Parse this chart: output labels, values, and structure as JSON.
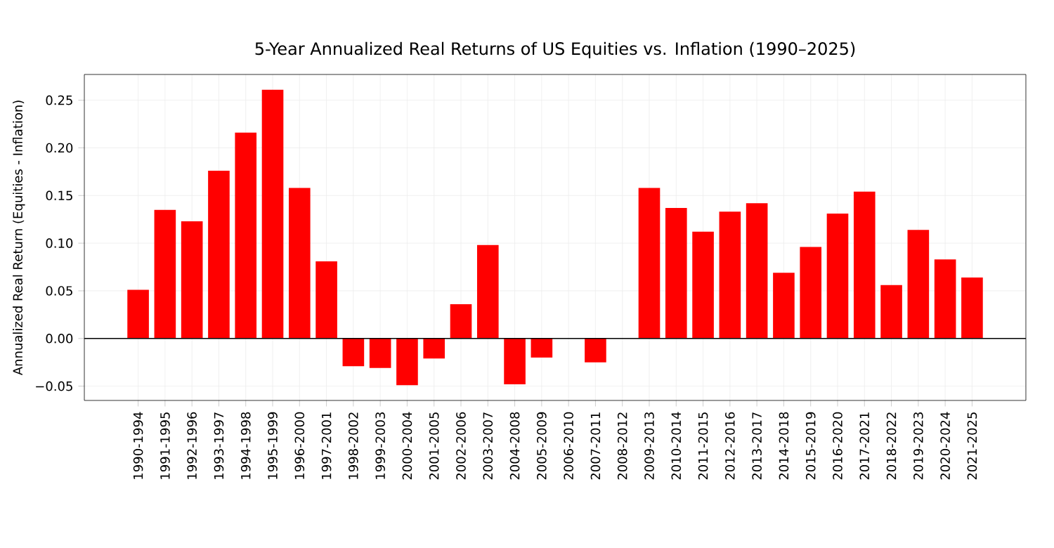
{
  "chart_data": {
    "type": "bar",
    "title": "5-Year Annualized Real Returns of US Equities vs. Inflation (1990–2025)",
    "ylabel": "Annualized Real Return (Equities - Inflation)",
    "categories": [
      "1990-1994",
      "1991-1995",
      "1992-1996",
      "1993-1997",
      "1994-1998",
      "1995-1999",
      "1996-2000",
      "1997-2001",
      "1998-2002",
      "1999-2003",
      "2000-2004",
      "2001-2005",
      "2002-2006",
      "2003-2007",
      "2004-2008",
      "2005-2009",
      "2006-2010",
      "2007-2011",
      "2008-2012",
      "2009-2013",
      "2010-2014",
      "2011-2015",
      "2012-2016",
      "2013-2017",
      "2014-2018",
      "2015-2019",
      "2016-2020",
      "2017-2021",
      "2018-2022",
      "2019-2023",
      "2020-2024",
      "2021-2025"
    ],
    "values": [
      0.051,
      0.135,
      0.123,
      0.176,
      0.216,
      0.261,
      0.158,
      0.081,
      -0.029,
      -0.031,
      -0.049,
      -0.021,
      0.036,
      0.098,
      -0.048,
      -0.02,
      0,
      -0.025,
      0,
      0.158,
      0.137,
      0.112,
      0.133,
      0.142,
      0.069,
      0.096,
      0.131,
      0.154,
      0.056,
      0.114,
      0.083,
      0.064
    ],
    "color": "#ff0000",
    "ylim": [
      -0.065,
      0.277
    ],
    "yticks": [
      {
        "value": -0.05,
        "label": "−0.05"
      },
      {
        "value": 0,
        "label": "0.00"
      },
      {
        "value": 0.05,
        "label": "0.05"
      },
      {
        "value": 0.1,
        "label": "0.10"
      },
      {
        "value": 0.15,
        "label": "0.15"
      },
      {
        "value": 0.2,
        "label": "0.20"
      },
      {
        "value": 0.25,
        "label": "0.25"
      }
    ],
    "grid": true,
    "ref_lines": [
      {
        "axis": "y",
        "value": 0,
        "color": "#000000"
      }
    ]
  }
}
